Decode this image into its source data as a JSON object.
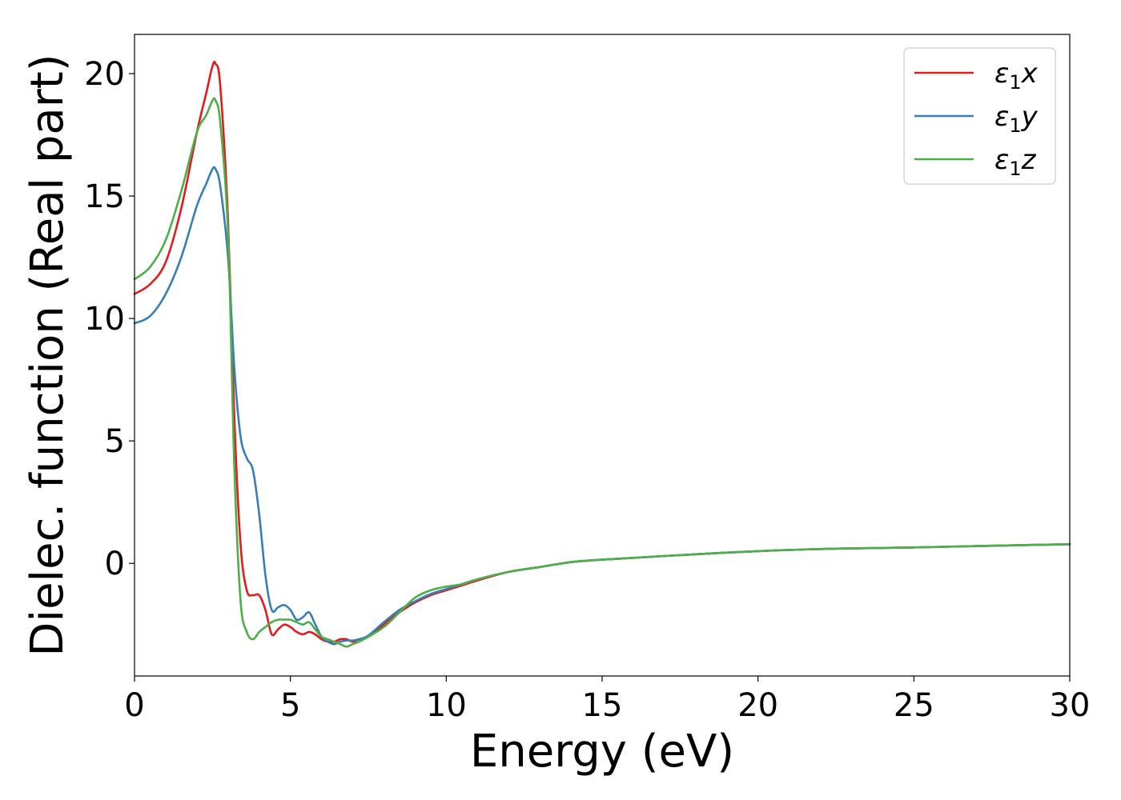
{
  "chart_data": {
    "type": "line",
    "title": "",
    "xlabel": "Energy (eV)",
    "ylabel": "Dielec. function (Real part)",
    "xlim": [
      0,
      30
    ],
    "ylim": [
      -4.6,
      21.6
    ],
    "xticks": [
      0,
      5,
      10,
      15,
      20,
      25,
      30
    ],
    "yticks": [
      0,
      5,
      10,
      15,
      20
    ],
    "grid": false,
    "legend": "top-right",
    "series": [
      {
        "name": "ε1x",
        "label_main": "ε",
        "label_sub": "1",
        "label_tail": "x",
        "color": "#e41a1c",
        "x": [
          0,
          0.5,
          1.0,
          1.5,
          2.0,
          2.3,
          2.5,
          2.6,
          2.75,
          3.0,
          3.2,
          3.4,
          3.6,
          3.8,
          4.0,
          4.2,
          4.4,
          4.6,
          4.8,
          5.0,
          5.2,
          5.4,
          5.6,
          5.8,
          6.0,
          6.2,
          6.4,
          6.6,
          6.8,
          7.0,
          7.2,
          7.5,
          8.0,
          8.5,
          9.0,
          9.5,
          10.0,
          10.5,
          11.0,
          12.0,
          13.0,
          14.0,
          15.0,
          17.0,
          20.0,
          22.5,
          25.0,
          27.5,
          30.0
        ],
        "y": [
          11.0,
          11.4,
          12.3,
          14.5,
          17.6,
          19.2,
          20.3,
          20.4,
          19.5,
          14.0,
          6.0,
          0.8,
          -1.1,
          -1.3,
          -1.3,
          -1.9,
          -2.9,
          -2.7,
          -2.5,
          -2.6,
          -2.8,
          -2.9,
          -2.8,
          -2.9,
          -3.1,
          -3.2,
          -3.2,
          -3.1,
          -3.1,
          -3.2,
          -3.1,
          -3.0,
          -2.5,
          -2.0,
          -1.6,
          -1.3,
          -1.1,
          -0.9,
          -0.7,
          -0.35,
          -0.15,
          0.05,
          0.15,
          0.3,
          0.5,
          0.6,
          0.65,
          0.72,
          0.78
        ]
      },
      {
        "name": "ε1y",
        "label_main": "ε",
        "label_sub": "1",
        "label_tail": "y",
        "color": "#377eb8",
        "x": [
          0,
          0.5,
          1.0,
          1.5,
          2.0,
          2.3,
          2.5,
          2.6,
          2.75,
          3.0,
          3.2,
          3.4,
          3.6,
          3.8,
          4.0,
          4.2,
          4.4,
          4.6,
          4.8,
          5.0,
          5.2,
          5.4,
          5.6,
          5.8,
          6.0,
          6.2,
          6.4,
          6.6,
          6.8,
          7.0,
          7.2,
          7.5,
          8.0,
          8.5,
          9.0,
          9.5,
          10.0,
          10.5,
          11.0,
          12.0,
          13.0,
          14.0,
          15.0,
          17.0,
          20.0,
          22.5,
          25.0,
          27.5,
          30.0
        ],
        "y": [
          9.8,
          10.1,
          11.0,
          12.5,
          14.6,
          15.5,
          16.1,
          16.1,
          15.4,
          12.5,
          8.0,
          5.2,
          4.3,
          3.8,
          2.0,
          -0.5,
          -1.9,
          -1.8,
          -1.7,
          -1.9,
          -2.3,
          -2.2,
          -2.0,
          -2.5,
          -3.0,
          -3.2,
          -3.3,
          -3.2,
          -3.15,
          -3.15,
          -3.1,
          -2.95,
          -2.4,
          -1.9,
          -1.55,
          -1.25,
          -1.05,
          -0.85,
          -0.65,
          -0.35,
          -0.15,
          0.05,
          0.15,
          0.3,
          0.5,
          0.6,
          0.65,
          0.72,
          0.78
        ]
      },
      {
        "name": "ε1z",
        "label_main": "ε",
        "label_sub": "1",
        "label_tail": "z",
        "color": "#4daf4a",
        "x": [
          0,
          0.5,
          1.0,
          1.5,
          2.0,
          2.3,
          2.5,
          2.6,
          2.75,
          3.0,
          3.2,
          3.4,
          3.6,
          3.8,
          4.0,
          4.2,
          4.4,
          4.6,
          4.8,
          5.0,
          5.2,
          5.4,
          5.6,
          5.8,
          6.0,
          6.2,
          6.4,
          6.6,
          6.8,
          7.0,
          7.2,
          7.5,
          8.0,
          8.5,
          9.0,
          9.5,
          10.0,
          10.5,
          11.0,
          12.0,
          13.0,
          14.0,
          15.0,
          17.0,
          20.0,
          22.5,
          25.0,
          27.5,
          30.0
        ],
        "y": [
          11.6,
          12.1,
          13.2,
          15.2,
          17.6,
          18.3,
          18.9,
          18.9,
          18.0,
          13.5,
          4.0,
          -1.5,
          -2.8,
          -3.1,
          -2.8,
          -2.6,
          -2.4,
          -2.3,
          -2.3,
          -2.3,
          -2.4,
          -2.5,
          -2.4,
          -2.7,
          -3.0,
          -3.1,
          -3.2,
          -3.3,
          -3.4,
          -3.3,
          -3.2,
          -3.0,
          -2.6,
          -2.0,
          -1.4,
          -1.1,
          -0.95,
          -0.85,
          -0.65,
          -0.35,
          -0.15,
          0.05,
          0.15,
          0.3,
          0.5,
          0.6,
          0.65,
          0.72,
          0.78
        ]
      }
    ]
  }
}
